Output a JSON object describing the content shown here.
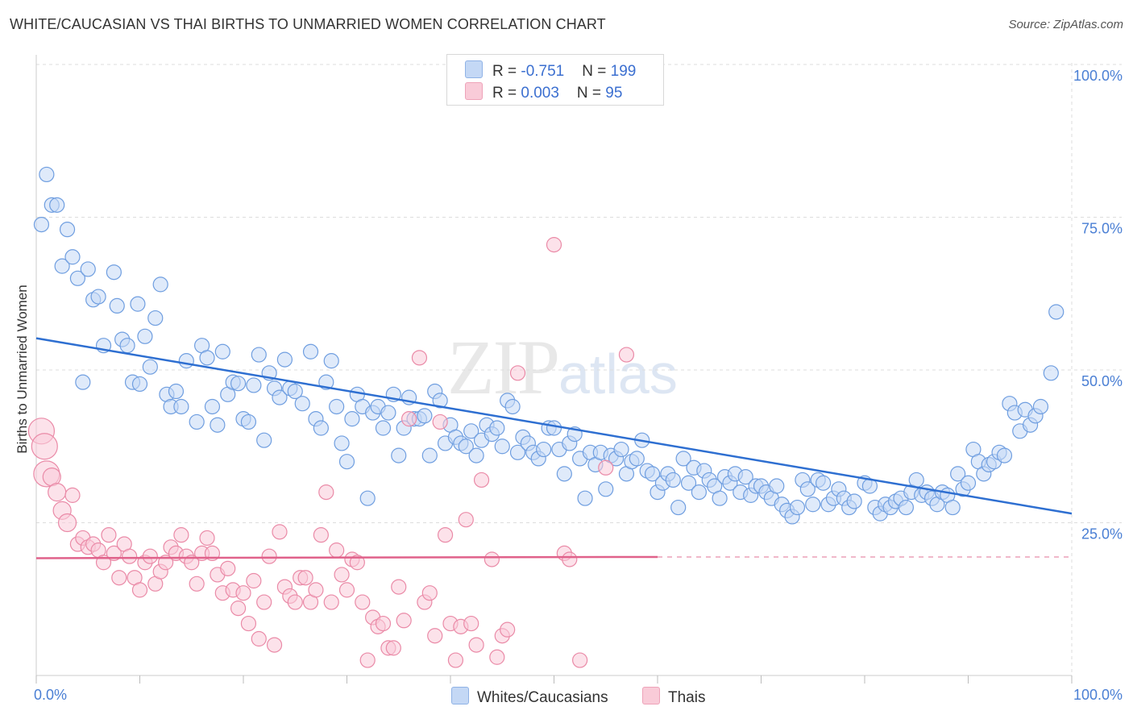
{
  "title": "WHITE/CAUCASIAN VS THAI BIRTHS TO UNMARRIED WOMEN CORRELATION CHART",
  "source": "Source: ZipAtlas.com",
  "watermark": {
    "zip": "ZIP",
    "atlas": "atlas"
  },
  "legend": {
    "rows": [
      {
        "r_label": "R = ",
        "r_value": "-0.751",
        "n_label": "N = ",
        "n_value": "199",
        "color": "#a9c5ee"
      },
      {
        "r_label": "R = ",
        "r_value": "0.003",
        "n_label": "N = ",
        "n_value": "95",
        "color": "#f6b8c9"
      }
    ]
  },
  "bottom_legend": [
    {
      "label": "Whites/Caucasians",
      "color": "#a9c5ee"
    },
    {
      "label": "Thais",
      "color": "#f6b8c9"
    }
  ],
  "chart_data": {
    "type": "scatter",
    "xlabel": "",
    "ylabel": "Births to Unmarried Women",
    "xlim": [
      0,
      100
    ],
    "ylim": [
      0,
      100
    ],
    "x_ticks": [
      "0.0%",
      "100.0%"
    ],
    "y_ticks": [
      {
        "value": 100,
        "label": "100.0%"
      },
      {
        "value": 75,
        "label": "75.0%"
      },
      {
        "value": 50,
        "label": "50.0%"
      },
      {
        "value": 25,
        "label": "25.0%"
      }
    ],
    "grid": true,
    "legend_position": "top-center",
    "series": [
      {
        "name": "Whites/Caucasians",
        "color": "#6f9ee0",
        "fill": "#c4d8f5",
        "trend": {
          "x": [
            0,
            100
          ],
          "y": [
            55.2,
            26.5
          ],
          "color": "#2e6fd1"
        },
        "points": [
          [
            0.5,
            73.8
          ],
          [
            1,
            82
          ],
          [
            1.5,
            77
          ],
          [
            2,
            77
          ],
          [
            2.5,
            67
          ],
          [
            3,
            73
          ],
          [
            3.5,
            68.5
          ],
          [
            4,
            65
          ],
          [
            4.5,
            48
          ],
          [
            5,
            66.5
          ],
          [
            5.5,
            61.5
          ],
          [
            6,
            62
          ],
          [
            6.5,
            54
          ],
          [
            7.5,
            66
          ],
          [
            7.8,
            60.5
          ],
          [
            8.3,
            55
          ],
          [
            8.8,
            54
          ],
          [
            9.3,
            48
          ],
          [
            9.8,
            60.8
          ],
          [
            10,
            47.7
          ],
          [
            10.5,
            55.5
          ],
          [
            11,
            50.5
          ],
          [
            11.5,
            58.5
          ],
          [
            12,
            64
          ],
          [
            12.6,
            46
          ],
          [
            13,
            44
          ],
          [
            13.5,
            46.5
          ],
          [
            14,
            44
          ],
          [
            14.5,
            51.5
          ],
          [
            15.5,
            41.5
          ],
          [
            16,
            54
          ],
          [
            16.5,
            52
          ],
          [
            17,
            44
          ],
          [
            17.5,
            41
          ],
          [
            18,
            53
          ],
          [
            18.5,
            46
          ],
          [
            19,
            48
          ],
          [
            19.5,
            47.8
          ],
          [
            20,
            42
          ],
          [
            20.5,
            41.5
          ],
          [
            21,
            47.5
          ],
          [
            21.5,
            52.5
          ],
          [
            22,
            38.5
          ],
          [
            22.5,
            49.5
          ],
          [
            23,
            47
          ],
          [
            23.5,
            45.5
          ],
          [
            24,
            51.7
          ],
          [
            24.5,
            47
          ],
          [
            25,
            46.5
          ],
          [
            25.7,
            44.5
          ],
          [
            26.5,
            53
          ],
          [
            27,
            42
          ],
          [
            27.5,
            40.5
          ],
          [
            28,
            48
          ],
          [
            28.5,
            51.5
          ],
          [
            29,
            44
          ],
          [
            29.5,
            38
          ],
          [
            30,
            35
          ],
          [
            30.5,
            42
          ],
          [
            31,
            46
          ],
          [
            31.5,
            44
          ],
          [
            32,
            29
          ],
          [
            32.5,
            43
          ],
          [
            33,
            44
          ],
          [
            33.5,
            40.5
          ],
          [
            34,
            43
          ],
          [
            34.5,
            46
          ],
          [
            35,
            36
          ],
          [
            35.5,
            40.5
          ],
          [
            36,
            45.5
          ],
          [
            36.5,
            42
          ],
          [
            37,
            42
          ],
          [
            37.5,
            42.5
          ],
          [
            38,
            36
          ],
          [
            38.5,
            46.5
          ],
          [
            39,
            45
          ],
          [
            39.5,
            38
          ],
          [
            40,
            41
          ],
          [
            40.5,
            39
          ],
          [
            41,
            38
          ],
          [
            41.5,
            37.5
          ],
          [
            42,
            40
          ],
          [
            42.5,
            36
          ],
          [
            43,
            38.5
          ],
          [
            43.5,
            41
          ],
          [
            44,
            39.5
          ],
          [
            44.5,
            40.5
          ],
          [
            45,
            37.5
          ],
          [
            45.5,
            45
          ],
          [
            46,
            44
          ],
          [
            46.5,
            36.5
          ],
          [
            47,
            39
          ],
          [
            47.5,
            38
          ],
          [
            48,
            36.5
          ],
          [
            48.5,
            35.5
          ],
          [
            49,
            37
          ],
          [
            49.5,
            40.5
          ],
          [
            50,
            40.5
          ],
          [
            50.5,
            37
          ],
          [
            51,
            33
          ],
          [
            51.5,
            38
          ],
          [
            52,
            39.5
          ],
          [
            52.5,
            35.5
          ],
          [
            53,
            29
          ],
          [
            53.5,
            36.5
          ],
          [
            54,
            34.5
          ],
          [
            54.5,
            36.5
          ],
          [
            55,
            30.5
          ],
          [
            55.5,
            36
          ],
          [
            56,
            35.5
          ],
          [
            56.5,
            37
          ],
          [
            57,
            33
          ],
          [
            57.5,
            35
          ],
          [
            58,
            35.5
          ],
          [
            58.5,
            38.5
          ],
          [
            59,
            33.5
          ],
          [
            59.5,
            33
          ],
          [
            60,
            30
          ],
          [
            60.5,
            31.5
          ],
          [
            61,
            33
          ],
          [
            61.5,
            32
          ],
          [
            62,
            27.5
          ],
          [
            62.5,
            35.5
          ],
          [
            63,
            31.5
          ],
          [
            63.5,
            34
          ],
          [
            64,
            30
          ],
          [
            64.5,
            33.5
          ],
          [
            65,
            32
          ],
          [
            65.5,
            31
          ],
          [
            66,
            29
          ],
          [
            66.5,
            32.5
          ],
          [
            67,
            31.5
          ],
          [
            67.5,
            33
          ],
          [
            68,
            30
          ],
          [
            68.5,
            32.5
          ],
          [
            69,
            29.5
          ],
          [
            69.5,
            31
          ],
          [
            70,
            31
          ],
          [
            70.5,
            30
          ],
          [
            71,
            29
          ],
          [
            71.5,
            31
          ],
          [
            72,
            28
          ],
          [
            72.5,
            27
          ],
          [
            73,
            26
          ],
          [
            73.5,
            27.5
          ],
          [
            74,
            32
          ],
          [
            74.5,
            30.5
          ],
          [
            75,
            28
          ],
          [
            75.5,
            32
          ],
          [
            76,
            31.5
          ],
          [
            76.5,
            28
          ],
          [
            77,
            29
          ],
          [
            77.5,
            30.5
          ],
          [
            78,
            29
          ],
          [
            78.5,
            27.5
          ],
          [
            79,
            28.5
          ],
          [
            80,
            31.5
          ],
          [
            80.5,
            31
          ],
          [
            81,
            27.5
          ],
          [
            81.5,
            26.5
          ],
          [
            82,
            28
          ],
          [
            82.5,
            27.5
          ],
          [
            83,
            28.5
          ],
          [
            83.5,
            29
          ],
          [
            84,
            27.5
          ],
          [
            84.5,
            30
          ],
          [
            85,
            32
          ],
          [
            85.5,
            29.5
          ],
          [
            86,
            30
          ],
          [
            86.5,
            29
          ],
          [
            87,
            28
          ],
          [
            87.5,
            30
          ],
          [
            88,
            29.5
          ],
          [
            88.5,
            27.5
          ],
          [
            89,
            33
          ],
          [
            89.5,
            30.5
          ],
          [
            90,
            31.5
          ],
          [
            90.5,
            37
          ],
          [
            91,
            35
          ],
          [
            91.5,
            33
          ],
          [
            92,
            34.5
          ],
          [
            92.5,
            35
          ],
          [
            93,
            36.5
          ],
          [
            93.5,
            36
          ],
          [
            94,
            44.5
          ],
          [
            94.5,
            43
          ],
          [
            95,
            40
          ],
          [
            95.5,
            43.5
          ],
          [
            96,
            41
          ],
          [
            96.5,
            42.5
          ],
          [
            97,
            44
          ],
          [
            98,
            49.5
          ],
          [
            98.5,
            59.5
          ]
        ]
      },
      {
        "name": "Thais",
        "color": "#ea8aa7",
        "fill": "#f9cbd8",
        "trend": {
          "x": [
            0,
            60
          ],
          "y": [
            19.2,
            19.4
          ],
          "dashed_to": 100,
          "color": "#e0628b"
        },
        "points": [
          [
            0.5,
            40
          ],
          [
            0.8,
            37.5
          ],
          [
            1,
            33
          ],
          [
            1.5,
            32.5
          ],
          [
            2,
            30
          ],
          [
            2.5,
            27
          ],
          [
            3,
            25
          ],
          [
            3.5,
            29.5
          ],
          [
            4,
            21.5
          ],
          [
            4.5,
            22.5
          ],
          [
            5,
            21
          ],
          [
            5.5,
            21.5
          ],
          [
            6,
            20.5
          ],
          [
            6.5,
            18.5
          ],
          [
            7,
            23
          ],
          [
            7.5,
            20
          ],
          [
            8,
            16
          ],
          [
            8.5,
            21.5
          ],
          [
            9,
            19.5
          ],
          [
            9.5,
            16
          ],
          [
            10,
            14
          ],
          [
            10.5,
            18.5
          ],
          [
            11,
            19.5
          ],
          [
            11.5,
            15
          ],
          [
            12,
            17
          ],
          [
            12.5,
            18.5
          ],
          [
            13,
            21
          ],
          [
            13.5,
            20
          ],
          [
            14,
            23
          ],
          [
            14.5,
            19.5
          ],
          [
            15,
            18.5
          ],
          [
            15.5,
            15
          ],
          [
            16,
            20
          ],
          [
            16.5,
            22.5
          ],
          [
            17,
            20
          ],
          [
            17.5,
            16.5
          ],
          [
            18,
            13.5
          ],
          [
            18.5,
            17.5
          ],
          [
            19,
            14
          ],
          [
            19.5,
            11
          ],
          [
            20,
            13.5
          ],
          [
            20.5,
            8.5
          ],
          [
            21,
            15.5
          ],
          [
            21.5,
            6
          ],
          [
            22,
            12
          ],
          [
            22.5,
            19.5
          ],
          [
            23,
            5
          ],
          [
            23.5,
            23.5
          ],
          [
            24,
            14.5
          ],
          [
            24.5,
            13
          ],
          [
            25,
            12
          ],
          [
            25.5,
            16
          ],
          [
            26,
            16
          ],
          [
            26.5,
            12
          ],
          [
            27,
            14
          ],
          [
            27.5,
            23
          ],
          [
            28,
            30
          ],
          [
            28.5,
            12
          ],
          [
            29,
            20.5
          ],
          [
            29.5,
            16.5
          ],
          [
            30,
            14
          ],
          [
            30.5,
            19
          ],
          [
            31,
            18.5
          ],
          [
            31.5,
            12
          ],
          [
            32,
            2.5
          ],
          [
            32.5,
            9.5
          ],
          [
            33,
            8
          ],
          [
            33.5,
            8.5
          ],
          [
            34,
            4.5
          ],
          [
            34.5,
            4.5
          ],
          [
            35,
            14.5
          ],
          [
            35.5,
            9
          ],
          [
            36,
            42
          ],
          [
            37,
            52
          ],
          [
            37.5,
            12
          ],
          [
            38,
            13.5
          ],
          [
            38.5,
            6.5
          ],
          [
            39,
            41.5
          ],
          [
            39.5,
            23
          ],
          [
            40,
            8.5
          ],
          [
            40.5,
            2.5
          ],
          [
            41,
            8
          ],
          [
            41.5,
            25.5
          ],
          [
            42,
            8.5
          ],
          [
            42.5,
            5
          ],
          [
            43,
            32
          ],
          [
            44,
            19
          ],
          [
            44.5,
            3
          ],
          [
            45,
            6.5
          ],
          [
            45.5,
            7.5
          ],
          [
            46.5,
            49.5
          ],
          [
            50,
            70.5
          ],
          [
            51,
            20
          ],
          [
            51.5,
            19
          ],
          [
            52.5,
            2.5
          ],
          [
            55,
            34
          ],
          [
            57,
            52.5
          ]
        ]
      }
    ]
  }
}
